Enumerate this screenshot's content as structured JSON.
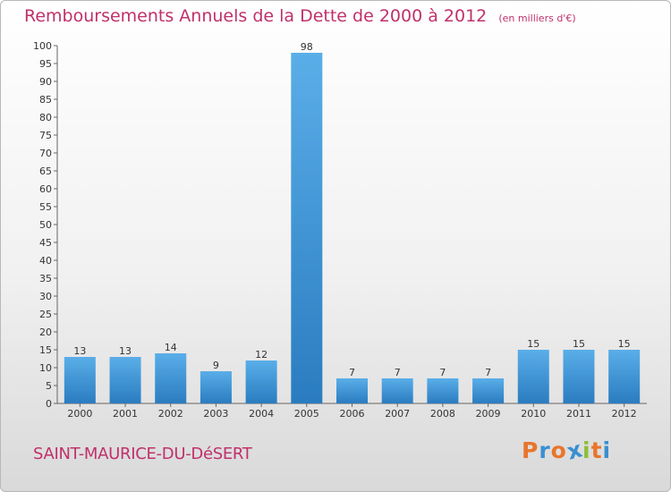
{
  "header": {
    "title": "Remboursements Annuels de la Dette de 2000 à 2012",
    "unit": "(en milliers d'€)"
  },
  "footer": {
    "place": "SAINT-MAURICE-DU-DéSERT",
    "logo": [
      "P",
      "r",
      "o",
      "x",
      "i",
      "t",
      "i"
    ],
    "logo_colors": [
      "#e8752c",
      "#3a8fd1",
      "#e8752c",
      "#3a8fd1",
      "#8bbf3a",
      "#e8752c",
      "#3a8fd1"
    ]
  },
  "colors": {
    "bar_light": "#5aaee8",
    "bar_dark": "#2a7cc0",
    "title": "#c0306a"
  },
  "chart_data": {
    "type": "bar",
    "categories": [
      "2000",
      "2001",
      "2002",
      "2003",
      "2004",
      "2005",
      "2006",
      "2007",
      "2008",
      "2009",
      "2010",
      "2011",
      "2012"
    ],
    "values": [
      13,
      13,
      14,
      9,
      12,
      98,
      7,
      7,
      7,
      7,
      15,
      15,
      15
    ],
    "ylim": [
      0,
      100
    ],
    "yticks": [
      0,
      5,
      10,
      15,
      20,
      25,
      30,
      35,
      40,
      45,
      50,
      55,
      60,
      65,
      70,
      75,
      80,
      85,
      90,
      95,
      100
    ],
    "grid": false,
    "data_labels": true
  }
}
